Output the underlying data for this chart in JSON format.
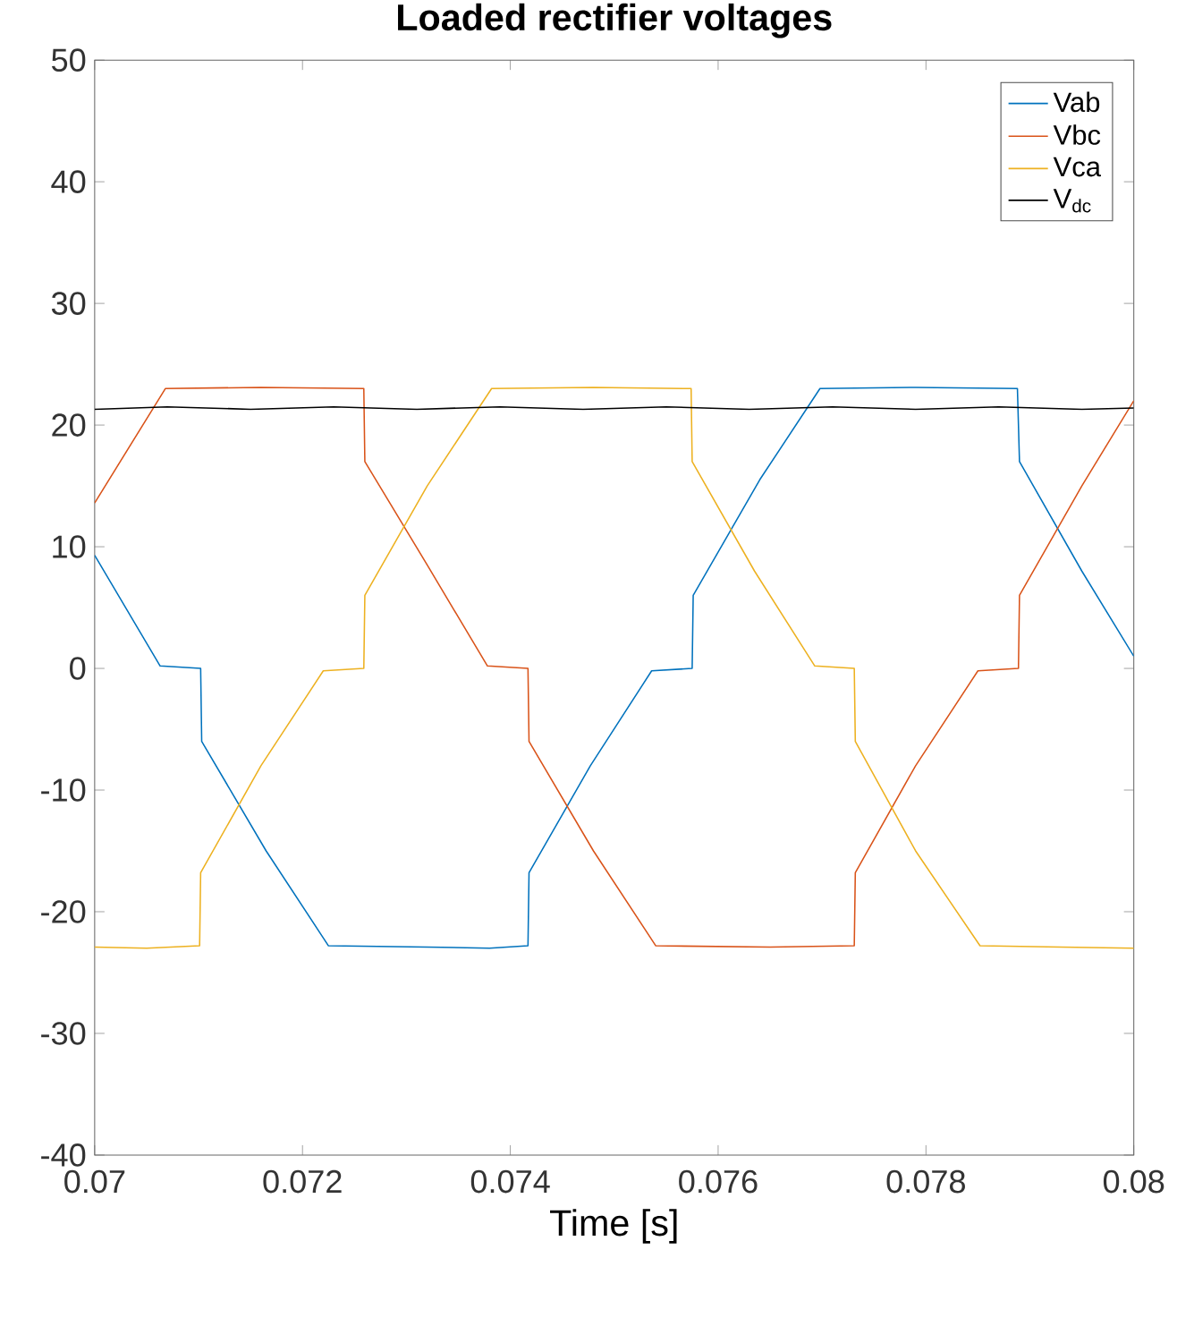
{
  "chart_data": {
    "type": "line",
    "title": "Loaded rectifier voltages",
    "xlabel": "Time [s]",
    "xlim": [
      0.07,
      0.08
    ],
    "xticks": [
      0.07,
      0.072,
      0.074,
      0.076,
      0.078,
      0.08
    ],
    "ylim": [
      -40,
      50
    ],
    "yticks": [
      -40,
      -30,
      -20,
      -10,
      0,
      10,
      20,
      30,
      40,
      50
    ],
    "legend": "top right",
    "grid": false,
    "series": [
      {
        "name": "Vab",
        "color": "#0072bd",
        "x": [
          0.07,
          0.07063,
          0.07102,
          0.07103,
          0.07165,
          0.07225,
          0.0732,
          0.0738,
          0.07417,
          0.07418,
          0.07477,
          0.07536,
          0.07575,
          0.07576,
          0.0764,
          0.07698,
          0.0779,
          0.07888,
          0.0789,
          0.0795,
          0.08
        ],
        "values": [
          9.3,
          0.2,
          0,
          -6,
          -15,
          -22.8,
          -22.9,
          -23,
          -22.8,
          -16.8,
          -8,
          -0.2,
          0,
          6,
          15.5,
          23,
          23.1,
          23,
          17,
          8,
          1
        ]
      },
      {
        "name": "Vbc",
        "color": "#d95319",
        "x": [
          0.07,
          0.07068,
          0.0716,
          0.07259,
          0.0726,
          0.0732,
          0.07378,
          0.07417,
          0.07418,
          0.0748,
          0.0754,
          0.0765,
          0.07731,
          0.07732,
          0.0779,
          0.0785,
          0.07889,
          0.0789,
          0.0795,
          0.08
        ],
        "values": [
          13.6,
          23,
          23.1,
          23,
          17,
          8.5,
          0.2,
          0,
          -6,
          -15,
          -22.8,
          -22.9,
          -22.8,
          -16.8,
          -8,
          -0.2,
          0,
          6,
          15,
          22
        ]
      },
      {
        "name": "Vca",
        "color": "#edb120",
        "x": [
          0.07,
          0.0705,
          0.07101,
          0.07102,
          0.0716,
          0.0722,
          0.07259,
          0.0726,
          0.0732,
          0.07382,
          0.0748,
          0.07574,
          0.07575,
          0.07635,
          0.07693,
          0.07731,
          0.07732,
          0.0779,
          0.07852,
          0.0793,
          0.08
        ],
        "values": [
          -22.9,
          -23,
          -22.8,
          -16.8,
          -8,
          -0.2,
          0,
          6,
          15,
          23,
          23.1,
          23,
          17,
          8,
          0.2,
          0,
          -6,
          -15,
          -22.8,
          -22.9,
          -23
        ]
      },
      {
        "name": "V$_{dc}$",
        "color": "#000000",
        "x": [
          0.07,
          0.0707,
          0.0715,
          0.0723,
          0.0731,
          0.0739,
          0.0747,
          0.0755,
          0.0763,
          0.0771,
          0.0779,
          0.0787,
          0.0795,
          0.08
        ],
        "values": [
          21.3,
          21.5,
          21.3,
          21.5,
          21.3,
          21.5,
          21.3,
          21.5,
          21.3,
          21.5,
          21.3,
          21.5,
          21.3,
          21.4
        ]
      }
    ]
  }
}
